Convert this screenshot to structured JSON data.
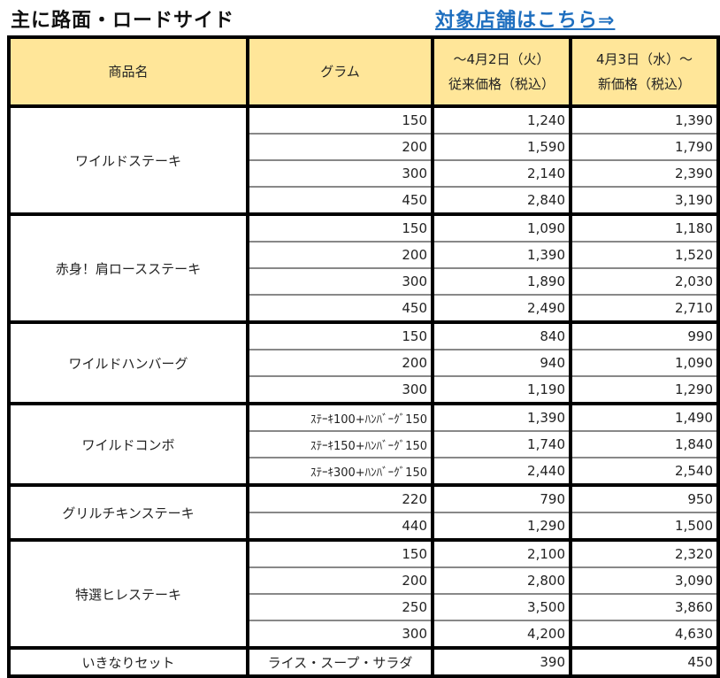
{
  "header": {
    "title": "主に路面・ロードサイド",
    "link_label": "対象店舗はこちら⇒"
  },
  "table": {
    "columns": {
      "name": "商品名",
      "gram": "グラム",
      "old_price_line1": "～4月2日（火）",
      "old_price_line2": "従来価格（税込）",
      "new_price_line1": "4月3日（水）～",
      "new_price_line2": "新価格（税込）"
    },
    "groups": [
      {
        "name": "ワイルドステーキ",
        "rows": [
          {
            "gram": "150",
            "old": "1,240",
            "new": "1,390"
          },
          {
            "gram": "200",
            "old": "1,590",
            "new": "1,790"
          },
          {
            "gram": "300",
            "old": "2,140",
            "new": "2,390"
          },
          {
            "gram": "450",
            "old": "2,840",
            "new": "3,190"
          }
        ]
      },
      {
        "name": "赤身！肩ロースステーキ",
        "rows": [
          {
            "gram": "150",
            "old": "1,090",
            "new": "1,180"
          },
          {
            "gram": "200",
            "old": "1,390",
            "new": "1,520"
          },
          {
            "gram": "300",
            "old": "1,890",
            "new": "2,030"
          },
          {
            "gram": "450",
            "old": "2,490",
            "new": "2,710"
          }
        ]
      },
      {
        "name": "ワイルドハンバーグ",
        "rows": [
          {
            "gram": "150",
            "old": "840",
            "new": "990"
          },
          {
            "gram": "200",
            "old": "940",
            "new": "1,090"
          },
          {
            "gram": "300",
            "old": "1,190",
            "new": "1,290"
          }
        ]
      },
      {
        "name": "ワイルドコンボ",
        "rows": [
          {
            "gram": "ｽﾃｰｷ100+ﾊﾝﾊﾞｰｸﾞ150",
            "old": "1,390",
            "new": "1,490"
          },
          {
            "gram": "ｽﾃｰｷ150+ﾊﾝﾊﾞｰｸﾞ150",
            "old": "1,740",
            "new": "1,840"
          },
          {
            "gram": "ｽﾃｰｷ300+ﾊﾝﾊﾞｰｸﾞ150",
            "old": "2,440",
            "new": "2,540"
          }
        ]
      },
      {
        "name": "グリルチキンステーキ",
        "rows": [
          {
            "gram": "220",
            "old": "790",
            "new": "950"
          },
          {
            "gram": "440",
            "old": "1,290",
            "new": "1,500"
          }
        ]
      },
      {
        "name": "特選ヒレステーキ",
        "rows": [
          {
            "gram": "150",
            "old": "2,100",
            "new": "2,320"
          },
          {
            "gram": "200",
            "old": "2,800",
            "new": "3,090"
          },
          {
            "gram": "250",
            "old": "3,500",
            "new": "3,860"
          },
          {
            "gram": "300",
            "old": "4,200",
            "new": "4,630"
          }
        ]
      },
      {
        "name": "いきなりセット",
        "rows": [
          {
            "gram": "ライス・スープ・サラダ",
            "old": "390",
            "new": "450"
          }
        ]
      }
    ]
  },
  "colors": {
    "header_bg": "#FFE699",
    "link": "#1F6FBF",
    "border": "#000000"
  }
}
